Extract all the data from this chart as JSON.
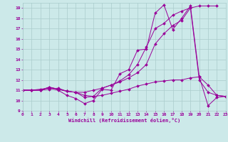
{
  "background_color": "#cce9e9",
  "grid_color": "#aacccc",
  "line_color": "#990099",
  "marker": "D",
  "marker_size": 2,
  "xlim": [
    0,
    23
  ],
  "ylim": [
    9,
    19.5
  ],
  "yticks": [
    9,
    10,
    11,
    12,
    13,
    14,
    15,
    16,
    17,
    18,
    19
  ],
  "xticks": [
    0,
    1,
    2,
    3,
    4,
    5,
    6,
    7,
    8,
    9,
    10,
    11,
    12,
    13,
    14,
    15,
    16,
    17,
    18,
    19,
    20,
    21,
    22,
    23
  ],
  "xlabel": "Windchill (Refroidissement éolien,°C)",
  "series": [
    [
      11.0,
      11.0,
      11.1,
      11.2,
      11.0,
      10.5,
      10.2,
      9.7,
      10.0,
      11.1,
      11.0,
      12.6,
      13.0,
      14.9,
      15.0,
      18.5,
      19.3,
      16.9,
      18.0,
      19.2,
      12.3,
      9.5,
      10.3,
      10.4
    ],
    [
      11.0,
      11.0,
      11.0,
      11.1,
      11.2,
      10.9,
      10.8,
      10.5,
      10.4,
      10.5,
      10.7,
      10.9,
      11.1,
      11.4,
      11.6,
      11.8,
      11.9,
      12.0,
      12.0,
      12.2,
      12.3,
      11.5,
      10.5,
      10.4
    ],
    [
      11.0,
      11.0,
      11.0,
      11.3,
      11.1,
      10.9,
      10.8,
      10.8,
      11.0,
      11.2,
      11.5,
      11.8,
      12.2,
      12.7,
      13.5,
      15.5,
      16.5,
      17.3,
      17.8,
      19.0,
      19.2,
      19.2,
      19.2,
      null
    ],
    [
      11.0,
      11.0,
      11.0,
      11.3,
      11.1,
      10.9,
      10.8,
      10.3,
      10.4,
      11.2,
      11.5,
      11.9,
      12.5,
      13.5,
      15.2,
      17.0,
      17.5,
      18.3,
      18.7,
      19.0,
      12.0,
      10.8,
      10.5,
      10.4
    ]
  ]
}
